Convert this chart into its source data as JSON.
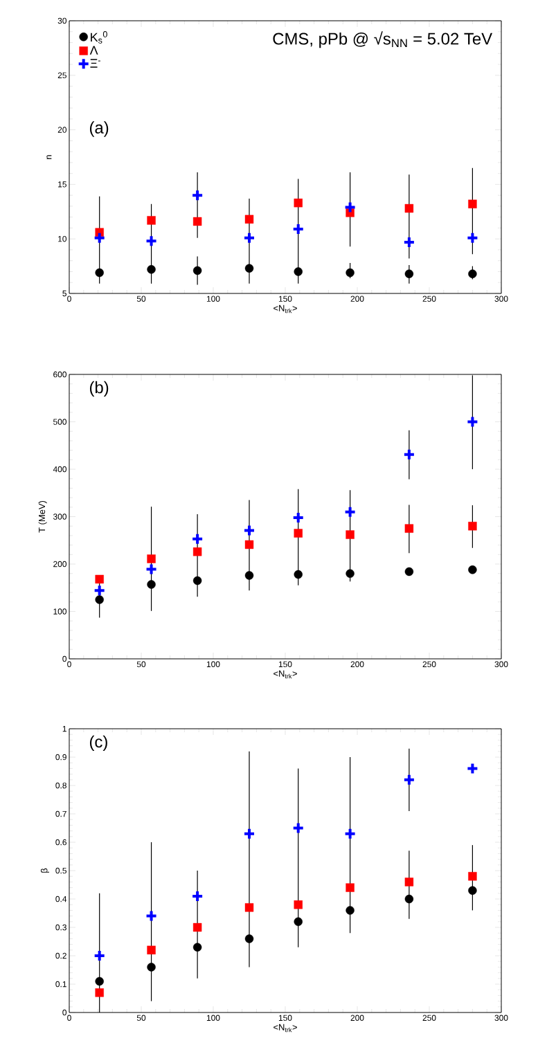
{
  "chart_data": [
    {
      "type": "scatter",
      "x": [
        21,
        57,
        89,
        125,
        159,
        195,
        236,
        280
      ],
      "xlabel": "<N$_{trk}$>",
      "ylabel": "n",
      "xlim": [
        0,
        300
      ],
      "ylim": [
        5,
        30
      ],
      "xticks": [
        0,
        50,
        100,
        150,
        200,
        250,
        300
      ],
      "yticks": [
        5,
        10,
        15,
        20,
        25,
        30
      ],
      "legend": "top left",
      "annotations": [
        "CMS, pPb @ √s$_{NN}$ = 5.02 TeV",
        "(a)"
      ],
      "series": [
        {
          "name": "K$_{s}$$^{0}$",
          "color": "#000000",
          "marker": "circle",
          "values": [
            6.9,
            7.2,
            7.1,
            7.3,
            7.0,
            6.9,
            6.8,
            6.8
          ],
          "errors": [
            null,
            null,
            [
              5.8,
              8.4
            ],
            null,
            null,
            [
              6.4,
              7.8
            ],
            [
              5.9,
              7.6
            ],
            [
              6.3,
              7.5
            ]
          ]
        },
        {
          "name": "Λ",
          "color": "#ff0000",
          "marker": "square",
          "values": [
            10.6,
            11.7,
            11.6,
            11.8,
            13.3,
            12.4,
            12.8,
            13.2
          ],
          "errors": [
            null,
            null,
            null,
            null,
            null,
            null,
            [
              8.2,
              15.9
            ],
            [
              8.6,
              16.5
            ]
          ]
        },
        {
          "name": "Ξ$^{-}$",
          "color": "#0000ff",
          "marker": "cross",
          "values": [
            10.1,
            9.8,
            14.0,
            10.1,
            10.9,
            12.9,
            9.7,
            10.1
          ],
          "errors": [
            [
              5.9,
              13.9
            ],
            [
              5.9,
              13.2
            ],
            [
              10.1,
              16.1
            ],
            [
              5.9,
              13.7
            ],
            [
              5.9,
              15.5
            ],
            [
              9.3,
              16.1
            ],
            null,
            null
          ]
        }
      ]
    },
    {
      "type": "scatter",
      "x": [
        21,
        57,
        89,
        125,
        159,
        195,
        236,
        280
      ],
      "xlabel": "<N$_{trk}$>",
      "ylabel": "T (MeV)",
      "xlim": [
        0,
        300
      ],
      "ylim": [
        0,
        600
      ],
      "xticks": [
        0,
        50,
        100,
        150,
        200,
        250,
        300
      ],
      "yticks": [
        0,
        100,
        200,
        300,
        400,
        500,
        600
      ],
      "annotations": [
        "(b)"
      ],
      "series": [
        {
          "color": "#000000",
          "marker": "circle",
          "values": [
            125,
            157,
            165,
            176,
            178,
            180,
            184,
            188
          ],
          "errors": [
            [
              87,
              159
            ],
            null,
            null,
            null,
            null,
            null,
            null,
            null
          ]
        },
        {
          "color": "#ff0000",
          "marker": "square",
          "values": [
            168,
            211,
            226,
            241,
            265,
            262,
            275,
            280
          ],
          "errors": [
            null,
            [
              101,
              321
            ],
            [
              131,
              305
            ],
            [
              144,
              335
            ],
            [
              155,
              358
            ],
            [
              163,
              356
            ],
            [
              223,
              325
            ],
            [
              234,
              324
            ]
          ]
        },
        {
          "color": "#0000ff",
          "marker": "cross",
          "values": [
            144,
            189,
            253,
            271,
            298,
            310,
            431,
            500
          ],
          "errors": [
            null,
            null,
            null,
            null,
            null,
            null,
            [
              379,
              482
            ],
            [
              400,
              598
            ]
          ]
        }
      ]
    },
    {
      "type": "scatter",
      "x": [
        21,
        57,
        89,
        125,
        159,
        195,
        236,
        280
      ],
      "xlabel": "<N$_{trk}$>",
      "ylabel": "β",
      "xlim": [
        0,
        300
      ],
      "ylim": [
        0,
        1
      ],
      "xticks": [
        0,
        50,
        100,
        150,
        200,
        250,
        300
      ],
      "yticks": [
        0,
        0.1,
        0.2,
        0.3,
        0.4,
        0.5,
        0.6,
        0.7,
        0.8,
        0.9,
        1
      ],
      "annotations": [
        "(c)"
      ],
      "series": [
        {
          "color": "#000000",
          "marker": "circle",
          "values": [
            0.11,
            0.16,
            0.23,
            0.26,
            0.32,
            0.36,
            0.4,
            0.43
          ]
        },
        {
          "color": "#ff0000",
          "marker": "square",
          "values": [
            0.07,
            0.22,
            0.3,
            0.37,
            0.38,
            0.44,
            0.46,
            0.48
          ],
          "errors": [
            null,
            null,
            [
              0.12,
              0.5
            ],
            null,
            null,
            null,
            [
              0.33,
              0.57
            ],
            [
              0.36,
              0.59
            ]
          ]
        },
        {
          "color": "#0000ff",
          "marker": "cross",
          "values": [
            0.2,
            0.34,
            0.41,
            0.63,
            0.65,
            0.63,
            0.82,
            0.86
          ],
          "errors": [
            [
              0,
              0.42
            ],
            [
              0.04,
              0.6
            ],
            null,
            [
              0.16,
              0.92
            ],
            [
              0.23,
              0.86
            ],
            [
              0.28,
              0.9
            ],
            [
              0.71,
              0.93
            ],
            null
          ]
        }
      ]
    }
  ]
}
